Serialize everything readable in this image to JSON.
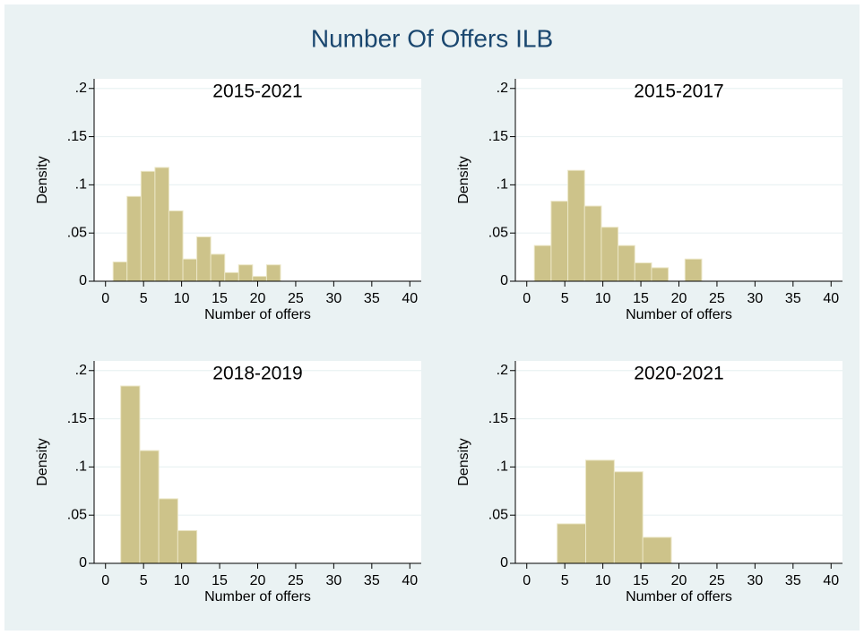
{
  "title": "Number Of Offers ILB",
  "chart_data": [
    {
      "type": "histogram",
      "title": "2015-2021",
      "x_label": "Number of offers",
      "y_label": "Density",
      "bins": [
        1,
        2.83,
        4.67,
        6.5,
        8.33,
        10.17,
        12,
        13.83,
        15.67,
        17.5,
        19.33,
        21.17,
        23
      ],
      "values": [
        0.02,
        0.088,
        0.114,
        0.118,
        0.073,
        0.023,
        0.046,
        0.028,
        0.009,
        0.017,
        0.005,
        0.017
      ],
      "color": "#cdc38a",
      "xlim": [
        -1.5,
        41.5
      ],
      "ylim": [
        0,
        0.21
      ],
      "xticks": [
        0,
        5,
        10,
        15,
        20,
        25,
        30,
        35,
        40
      ],
      "yticks": [
        0,
        {
          "value": 0.05,
          "label": ".05"
        },
        {
          "value": 0.1,
          "label": ".1"
        },
        {
          "value": 0.15,
          "label": ".15"
        },
        {
          "value": 0.2,
          "label": ".2"
        }
      ],
      "grid": true
    },
    {
      "type": "histogram",
      "title": "2015-2017",
      "x_label": "Number of offers",
      "y_label": "Density",
      "bins": [
        1,
        3.2,
        5.4,
        7.6,
        9.8,
        12,
        14.2,
        16.4,
        18.6,
        20.8,
        23
      ],
      "values": [
        0.037,
        0.083,
        0.115,
        0.078,
        0.056,
        0.037,
        0.019,
        0.014,
        0,
        0.023
      ],
      "color": "#cdc38a",
      "xlim": [
        -1.5,
        41.5
      ],
      "ylim": [
        0,
        0.21
      ],
      "xticks": [
        0,
        5,
        10,
        15,
        20,
        25,
        30,
        35,
        40
      ],
      "yticks": [
        0,
        {
          "value": 0.05,
          "label": ".05"
        },
        {
          "value": 0.1,
          "label": ".1"
        },
        {
          "value": 0.15,
          "label": ".15"
        },
        {
          "value": 0.2,
          "label": ".2"
        }
      ],
      "grid": true
    },
    {
      "type": "histogram",
      "title": "2018-2019",
      "x_label": "Number of offers",
      "y_label": "Density",
      "bins": [
        2,
        4.5,
        7,
        9.5,
        12
      ],
      "values": [
        0.184,
        0.117,
        0.067,
        0.034
      ],
      "color": "#cdc38a",
      "xlim": [
        -1.5,
        41.5
      ],
      "ylim": [
        0,
        0.21
      ],
      "xticks": [
        0,
        5,
        10,
        15,
        20,
        25,
        30,
        35,
        40
      ],
      "yticks": [
        0,
        {
          "value": 0.05,
          "label": ".05"
        },
        {
          "value": 0.1,
          "label": ".1"
        },
        {
          "value": 0.15,
          "label": ".15"
        },
        {
          "value": 0.2,
          "label": ".2"
        }
      ],
      "grid": true
    },
    {
      "type": "histogram",
      "title": "2020-2021",
      "x_label": "Number of offers",
      "y_label": "Density",
      "bins": [
        4,
        7.75,
        11.5,
        15.25,
        19
      ],
      "values": [
        0.041,
        0.107,
        0.095,
        0.027
      ],
      "color": "#cdc38a",
      "xlim": [
        -1.5,
        41.5
      ],
      "ylim": [
        0,
        0.21
      ],
      "xticks": [
        0,
        5,
        10,
        15,
        20,
        25,
        30,
        35,
        40
      ],
      "yticks": [
        0,
        {
          "value": 0.05,
          "label": ".05"
        },
        {
          "value": 0.1,
          "label": ".1"
        },
        {
          "value": 0.15,
          "label": ".15"
        },
        {
          "value": 0.2,
          "label": ".2"
        }
      ],
      "grid": true
    }
  ]
}
